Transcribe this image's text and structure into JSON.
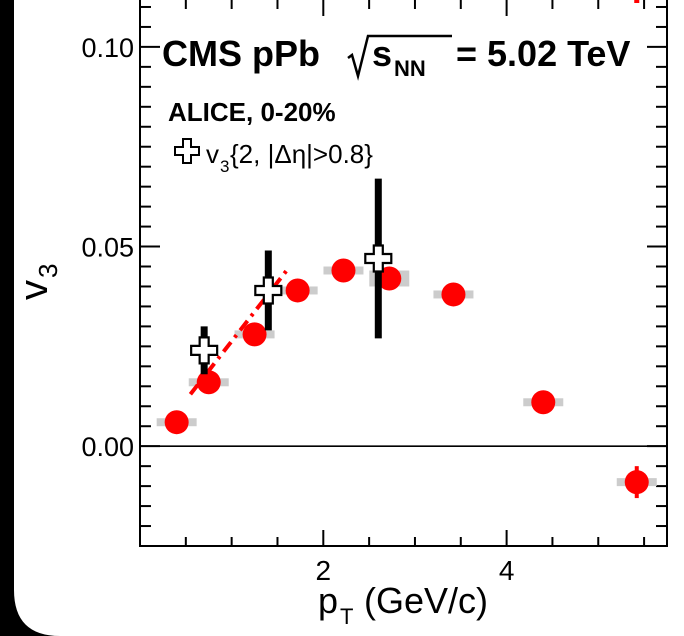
{
  "chart_data": {
    "type": "scatter",
    "title_parts": {
      "experiment": "CMS pPb",
      "sqrt_label": "s",
      "sqrt_sub": "NN",
      "energy": "= 5.02 TeV"
    },
    "ylabel": "v",
    "ylabel_sub": "3",
    "xlabel": "p",
    "xlabel_sub": "T",
    "xlabel_unit": "(GeV/c)",
    "xlim": [
      0,
      5.75
    ],
    "ylim": [
      -0.025,
      0.113
    ],
    "x_ticks": [
      2,
      4
    ],
    "y_ticks": [
      0.1,
      0.05,
      0.0
    ],
    "x_tick_labels": [
      "2",
      "4"
    ],
    "y_tick_labels": [
      "0.10",
      "0.05",
      "0.00"
    ],
    "legend": {
      "header": "ALICE, 0-20%",
      "entry_v": "v",
      "entry_sub": "3",
      "entry_rest": "{2, |Δη|>0.8}",
      "placement": "top-left"
    },
    "colors": {
      "cms": "#ff0000",
      "alice": "#000000",
      "syst": "#cccccc",
      "frame_bg": "#ffffff",
      "page_bg": "#000000"
    },
    "series": [
      {
        "marker": "filled-circle",
        "color": "#ff0000",
        "points": [
          {
            "x": 0.4,
            "y": 0.006,
            "err": 0.0,
            "syst": 0.001
          },
          {
            "x": 0.75,
            "y": 0.016,
            "err": 0.0,
            "syst": 0.001
          },
          {
            "x": 1.25,
            "y": 0.028,
            "err": 0.0,
            "syst": 0.001
          },
          {
            "x": 1.72,
            "y": 0.039,
            "err": 0.0,
            "syst": 0.001
          },
          {
            "x": 2.22,
            "y": 0.044,
            "err": 0.0,
            "syst": 0.001
          },
          {
            "x": 2.72,
            "y": 0.042,
            "err": 0.0,
            "syst": 0.002
          },
          {
            "x": 3.42,
            "y": 0.038,
            "err": 0.0,
            "syst": 0.001
          },
          {
            "x": 4.4,
            "y": 0.011,
            "err": 0.0,
            "syst": 0.001
          },
          {
            "x": 5.42,
            "y": -0.009,
            "err": 0.004,
            "syst": 0.001
          }
        ]
      },
      {
        "name": "v3{2, |Δη|>0.8}",
        "marker": "open-cross",
        "color": "#000000",
        "points": [
          {
            "x": 0.7,
            "y": 0.024,
            "err": 0.006
          },
          {
            "x": 1.4,
            "y": 0.039,
            "err": 0.01
          },
          {
            "x": 2.6,
            "y": 0.047,
            "err": 0.02
          }
        ]
      }
    ],
    "dashed_line": [
      [
        0.55,
        0.013
      ],
      [
        1.6,
        0.044
      ]
    ],
    "top_right_error_bar": {
      "x": 5.42,
      "y_top": 0.125,
      "y_bottom": 0.111
    }
  }
}
